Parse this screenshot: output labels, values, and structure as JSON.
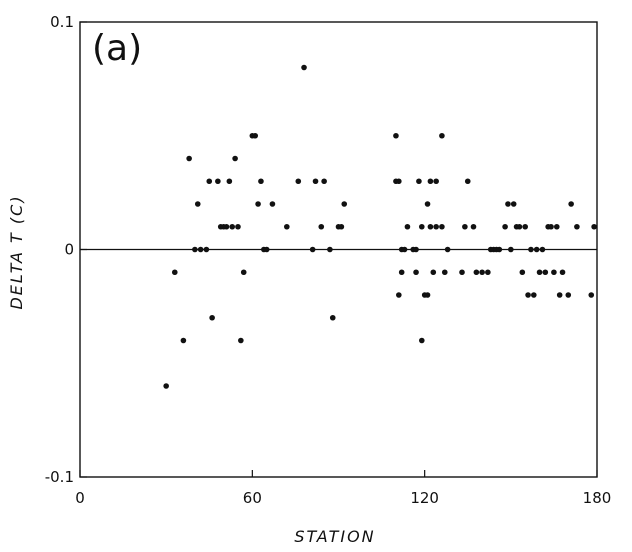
{
  "chart_data": {
    "type": "scatter",
    "panel_label": "(a)",
    "xlabel": "STATION",
    "ylabel": "DELTA T (C)",
    "xlim": [
      0,
      180
    ],
    "ylim": [
      -0.1,
      0.1
    ],
    "x_ticks": [
      {
        "value": 0,
        "label": "0"
      },
      {
        "value": 60,
        "label": "60"
      },
      {
        "value": 120,
        "label": "120"
      },
      {
        "value": 180,
        "label": "180"
      }
    ],
    "y_ticks": [
      {
        "value": 0.1,
        "label": "0.1"
      },
      {
        "value": 0,
        "label": "0"
      },
      {
        "value": -0.1,
        "label": "-0.1"
      }
    ],
    "zero_line": true,
    "grid": false,
    "points": [
      {
        "x": 30,
        "y": -0.06
      },
      {
        "x": 33,
        "y": -0.01
      },
      {
        "x": 36,
        "y": -0.04
      },
      {
        "x": 38,
        "y": 0.04
      },
      {
        "x": 40,
        "y": 0.0
      },
      {
        "x": 41,
        "y": 0.02
      },
      {
        "x": 42,
        "y": 0.0
      },
      {
        "x": 44,
        "y": 0.0
      },
      {
        "x": 45,
        "y": 0.03
      },
      {
        "x": 46,
        "y": -0.03
      },
      {
        "x": 48,
        "y": 0.03
      },
      {
        "x": 49,
        "y": 0.01
      },
      {
        "x": 50,
        "y": 0.01
      },
      {
        "x": 51,
        "y": 0.01
      },
      {
        "x": 52,
        "y": 0.03
      },
      {
        "x": 53,
        "y": 0.01
      },
      {
        "x": 54,
        "y": 0.04
      },
      {
        "x": 55,
        "y": 0.01
      },
      {
        "x": 56,
        "y": -0.04
      },
      {
        "x": 57,
        "y": -0.01
      },
      {
        "x": 60,
        "y": 0.05
      },
      {
        "x": 61,
        "y": 0.05
      },
      {
        "x": 62,
        "y": 0.02
      },
      {
        "x": 63,
        "y": 0.03
      },
      {
        "x": 64,
        "y": 0.0
      },
      {
        "x": 65,
        "y": 0.0
      },
      {
        "x": 67,
        "y": 0.02
      },
      {
        "x": 72,
        "y": 0.01
      },
      {
        "x": 76,
        "y": 0.03
      },
      {
        "x": 78,
        "y": 0.08
      },
      {
        "x": 81,
        "y": 0.0
      },
      {
        "x": 82,
        "y": 0.03
      },
      {
        "x": 84,
        "y": 0.01
      },
      {
        "x": 85,
        "y": 0.03
      },
      {
        "x": 87,
        "y": 0.0
      },
      {
        "x": 88,
        "y": -0.03
      },
      {
        "x": 90,
        "y": 0.01
      },
      {
        "x": 91,
        "y": 0.01
      },
      {
        "x": 92,
        "y": 0.02
      },
      {
        "x": 110,
        "y": 0.05
      },
      {
        "x": 110,
        "y": 0.03
      },
      {
        "x": 111,
        "y": 0.03
      },
      {
        "x": 111,
        "y": -0.02
      },
      {
        "x": 112,
        "y": 0.0
      },
      {
        "x": 112,
        "y": -0.01
      },
      {
        "x": 113,
        "y": 0.0
      },
      {
        "x": 114,
        "y": 0.01
      },
      {
        "x": 116,
        "y": 0.0
      },
      {
        "x": 117,
        "y": -0.01
      },
      {
        "x": 117,
        "y": 0.0
      },
      {
        "x": 118,
        "y": 0.03
      },
      {
        "x": 119,
        "y": 0.01
      },
      {
        "x": 119,
        "y": -0.04
      },
      {
        "x": 120,
        "y": -0.02
      },
      {
        "x": 121,
        "y": 0.02
      },
      {
        "x": 121,
        "y": -0.02
      },
      {
        "x": 122,
        "y": 0.03
      },
      {
        "x": 122,
        "y": 0.01
      },
      {
        "x": 123,
        "y": -0.01
      },
      {
        "x": 124,
        "y": 0.01
      },
      {
        "x": 124,
        "y": 0.03
      },
      {
        "x": 126,
        "y": 0.01
      },
      {
        "x": 126,
        "y": 0.05
      },
      {
        "x": 127,
        "y": -0.01
      },
      {
        "x": 128,
        "y": 0.0
      },
      {
        "x": 133,
        "y": -0.01
      },
      {
        "x": 134,
        "y": 0.01
      },
      {
        "x": 135,
        "y": 0.03
      },
      {
        "x": 137,
        "y": 0.01
      },
      {
        "x": 138,
        "y": -0.01
      },
      {
        "x": 140,
        "y": -0.01
      },
      {
        "x": 142,
        "y": -0.01
      },
      {
        "x": 143,
        "y": 0.0
      },
      {
        "x": 144,
        "y": 0.0
      },
      {
        "x": 145,
        "y": 0.0
      },
      {
        "x": 146,
        "y": 0.0
      },
      {
        "x": 148,
        "y": 0.01
      },
      {
        "x": 149,
        "y": 0.02
      },
      {
        "x": 150,
        "y": 0.0
      },
      {
        "x": 151,
        "y": 0.02
      },
      {
        "x": 152,
        "y": 0.01
      },
      {
        "x": 153,
        "y": 0.01
      },
      {
        "x": 154,
        "y": -0.01
      },
      {
        "x": 155,
        "y": 0.01
      },
      {
        "x": 156,
        "y": -0.02
      },
      {
        "x": 157,
        "y": 0.0
      },
      {
        "x": 158,
        "y": -0.02
      },
      {
        "x": 159,
        "y": 0.0
      },
      {
        "x": 160,
        "y": -0.01
      },
      {
        "x": 161,
        "y": 0.0
      },
      {
        "x": 162,
        "y": -0.01
      },
      {
        "x": 163,
        "y": 0.01
      },
      {
        "x": 164,
        "y": 0.01
      },
      {
        "x": 165,
        "y": -0.01
      },
      {
        "x": 166,
        "y": 0.01
      },
      {
        "x": 167,
        "y": -0.02
      },
      {
        "x": 168,
        "y": -0.01
      },
      {
        "x": 170,
        "y": -0.02
      },
      {
        "x": 171,
        "y": 0.02
      },
      {
        "x": 173,
        "y": 0.01
      },
      {
        "x": 178,
        "y": -0.02
      },
      {
        "x": 179,
        "y": 0.01
      }
    ]
  }
}
